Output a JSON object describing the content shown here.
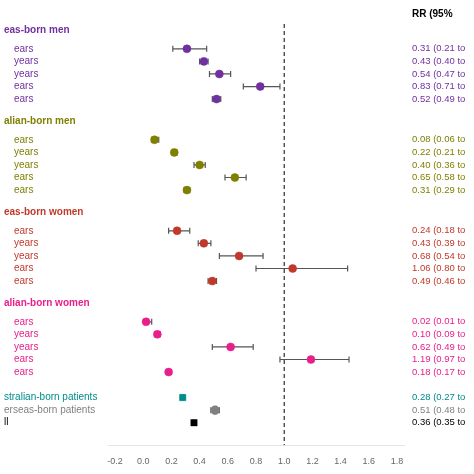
{
  "chart_data": {
    "type": "forest",
    "xlim": [
      -0.25,
      1.85
    ],
    "xticks": [
      -0.2,
      {
        "value": 0,
        "label": "0.0"
      },
      0.2,
      0.4,
      0.6,
      0.8,
      {
        "value": 1,
        "label": "1.0"
      },
      1.2,
      1.4,
      1.6,
      1.8
    ],
    "grid": false,
    "reference_line": 1.0,
    "value_header": "RR (95%",
    "series": [
      {
        "name": "eas-born men",
        "color": "#7030A0",
        "marker": "circle",
        "labels": [
          "ears",
          "years",
          "years",
          "ears",
          "ears"
        ],
        "values": [
          0.31,
          0.43,
          0.54,
          0.83,
          0.52
        ],
        "lo": [
          0.21,
          0.4,
          0.47,
          0.71,
          0.49
        ],
        "hi": [
          0.45,
          0.46,
          0.62,
          0.97,
          0.55
        ],
        "value_labels": [
          "0.31 (0.21 to",
          "0.43 (0.40 to",
          "0.54 (0.47 to",
          "0.83 (0.71 to",
          "0.52 (0.49 to"
        ]
      },
      {
        "name": "alian-born men",
        "color": "#7F7F00",
        "marker": "circle",
        "labels": [
          "ears",
          "years",
          "years",
          "ears",
          "ears"
        ],
        "values": [
          0.08,
          0.22,
          0.4,
          0.65,
          0.31
        ],
        "lo": [
          0.06,
          0.21,
          0.36,
          0.58,
          0.29
        ],
        "hi": [
          0.11,
          0.24,
          0.44,
          0.73,
          0.33
        ],
        "value_labels": [
          "0.08 (0.06 to",
          "0.22 (0.21 to",
          "0.40 (0.36 to",
          "0.65 (0.58 to",
          "0.31 (0.29 to"
        ]
      },
      {
        "name": "eas-born women",
        "color": "#C0392B",
        "marker": "circle",
        "labels": [
          "ears",
          "years",
          "years",
          "ears",
          "ears"
        ],
        "values": [
          0.24,
          0.43,
          0.68,
          1.06,
          0.49
        ],
        "lo": [
          0.18,
          0.39,
          0.54,
          0.8,
          0.46
        ],
        "hi": [
          0.33,
          0.48,
          0.85,
          1.45,
          0.52
        ],
        "value_labels": [
          "0.24 (0.18 to",
          "0.43 (0.39 to",
          "0.68 (0.54 to",
          "1.06 (0.80 to",
          "0.49 (0.46 to"
        ]
      },
      {
        "name": "alian-born women",
        "color": "#E91E8C",
        "marker": "circle",
        "labels": [
          "ears",
          "years",
          "years",
          "ears",
          "ears"
        ],
        "values": [
          0.02,
          0.1,
          0.62,
          1.19,
          0.18
        ],
        "lo": [
          0.01,
          0.09,
          0.49,
          0.97,
          0.17
        ],
        "hi": [
          0.06,
          0.12,
          0.78,
          1.46,
          0.2
        ],
        "value_labels": [
          "0.02 (0.01 to",
          "0.10 (0.09 to",
          "0.62 (0.49 to",
          "1.19 (0.97 to",
          "0.18 (0.17 to"
        ]
      }
    ],
    "summary": [
      {
        "name": "stralian-born patients",
        "color": "#008B8B",
        "marker": "square",
        "value": 0.28,
        "lo": 0.275,
        "hi": 0.285,
        "value_label": "0.28 (0.27 to"
      },
      {
        "name": "erseas-born patients",
        "color": "#808080",
        "marker": "circle",
        "value": 0.51,
        "lo": 0.48,
        "hi": 0.54,
        "value_label": "0.51 (0.48 to"
      },
      {
        "name": "ll",
        "color": "#000000",
        "marker": "square",
        "value": 0.36,
        "lo": 0.354,
        "hi": 0.366,
        "value_label": "0.36 (0.35 to"
      }
    ]
  }
}
